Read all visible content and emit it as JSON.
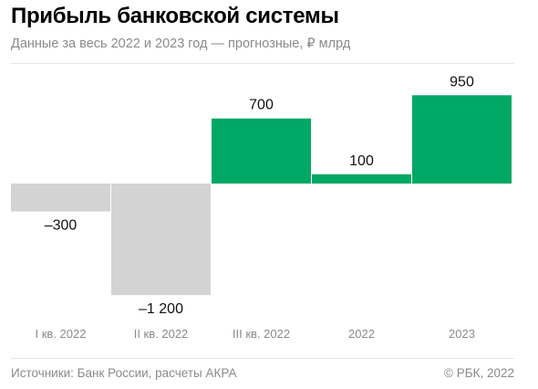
{
  "header": {
    "title": "Прибыль банковской системы",
    "subtitle": "Данные за весь 2022 и 2023 год — прогнозные, ₽ млрд"
  },
  "footer": {
    "source": "Источники: Банк России, расчеты АКРА",
    "copyright": "© РБК, 2022"
  },
  "colors": {
    "positive": "#00a865",
    "negative": "#d3d3d3",
    "axis_label": "#8a8a8a",
    "value_label": "#111111"
  },
  "chart_data": {
    "type": "bar",
    "title": "Прибыль банковской системы",
    "subtitle": "Данные за весь 2022 и 2023 год — прогнозные, ₽ млрд",
    "categories": [
      "I кв. 2022",
      "II кв. 2022",
      "III кв. 2022",
      "2022",
      "2023"
    ],
    "values": [
      -300,
      -1200,
      700,
      100,
      950
    ],
    "value_labels": [
      "–300",
      "–1 200",
      "700",
      "100",
      "950"
    ],
    "ylim": [
      -1200,
      950
    ],
    "grid": false,
    "legend": "none"
  }
}
